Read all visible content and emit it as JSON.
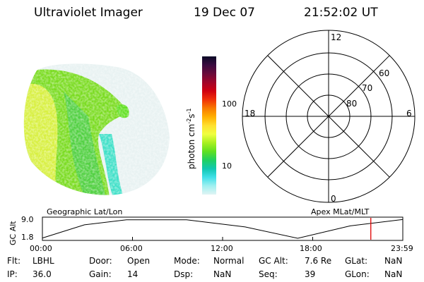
{
  "header": {
    "title": "Ultraviolet Imager",
    "date": "19 Dec 07",
    "time": "21:52:02 UT"
  },
  "colorbar": {
    "label": "photon cm",
    "label_sup1": "-2",
    "label_mid": "s",
    "label_sup2": "-1",
    "ticks": [
      "100",
      "10"
    ],
    "colors": [
      "#0a0a26",
      "#3a0a40",
      "#6a0a3a",
      "#a0052a",
      "#d00010",
      "#f03008",
      "#f87a00",
      "#ffb000",
      "#ffe030",
      "#f0ff40",
      "#a8f020",
      "#60e020",
      "#20d060",
      "#10c8b0",
      "#40e0e8",
      "#a0f0f0",
      "#e0f4f4"
    ]
  },
  "polar_plot": {
    "labels": {
      "top": "12",
      "bottom": "0",
      "left": "18",
      "right": "6"
    },
    "rings": [
      "60",
      "70",
      "80"
    ]
  },
  "map_labels": {
    "left": "Geographic Lat/Lon",
    "right": "Apex MLat/MLT"
  },
  "altitude_plot": {
    "ylabel": "GC Alt",
    "yticks": [
      "9.0",
      "1.8"
    ],
    "xticks": [
      "00:00",
      "06:00",
      "12:00",
      "18:00",
      "23:59"
    ],
    "x_hours": [
      0,
      2.8,
      5.6,
      9.6,
      13.5,
      17.0,
      20.5,
      23.98
    ],
    "y_values": [
      1.9,
      6.9,
      8.8,
      8.8,
      6.1,
      1.8,
      6.5,
      8.9
    ],
    "current_time_hour": 21.87
  },
  "status": {
    "row1": [
      {
        "key": "Flt:",
        "value": "LBHL"
      },
      {
        "key": "Door:",
        "value": "Open"
      },
      {
        "key": "Mode:",
        "value": "Normal"
      },
      {
        "key": "GC Alt:",
        "value": "7.6 Re"
      },
      {
        "key": "GLat:",
        "value": "NaN"
      }
    ],
    "row2": [
      {
        "key": "IP:",
        "value": "36.0"
      },
      {
        "key": "Gain:",
        "value": "14"
      },
      {
        "key": "Dsp:",
        "value": "NaN"
      },
      {
        "key": "Seq:",
        "value": "39"
      },
      {
        "key": "GLon:",
        "value": "NaN"
      }
    ]
  },
  "colors": {
    "polar": "#000000",
    "current_time_marker": "#e00000"
  }
}
